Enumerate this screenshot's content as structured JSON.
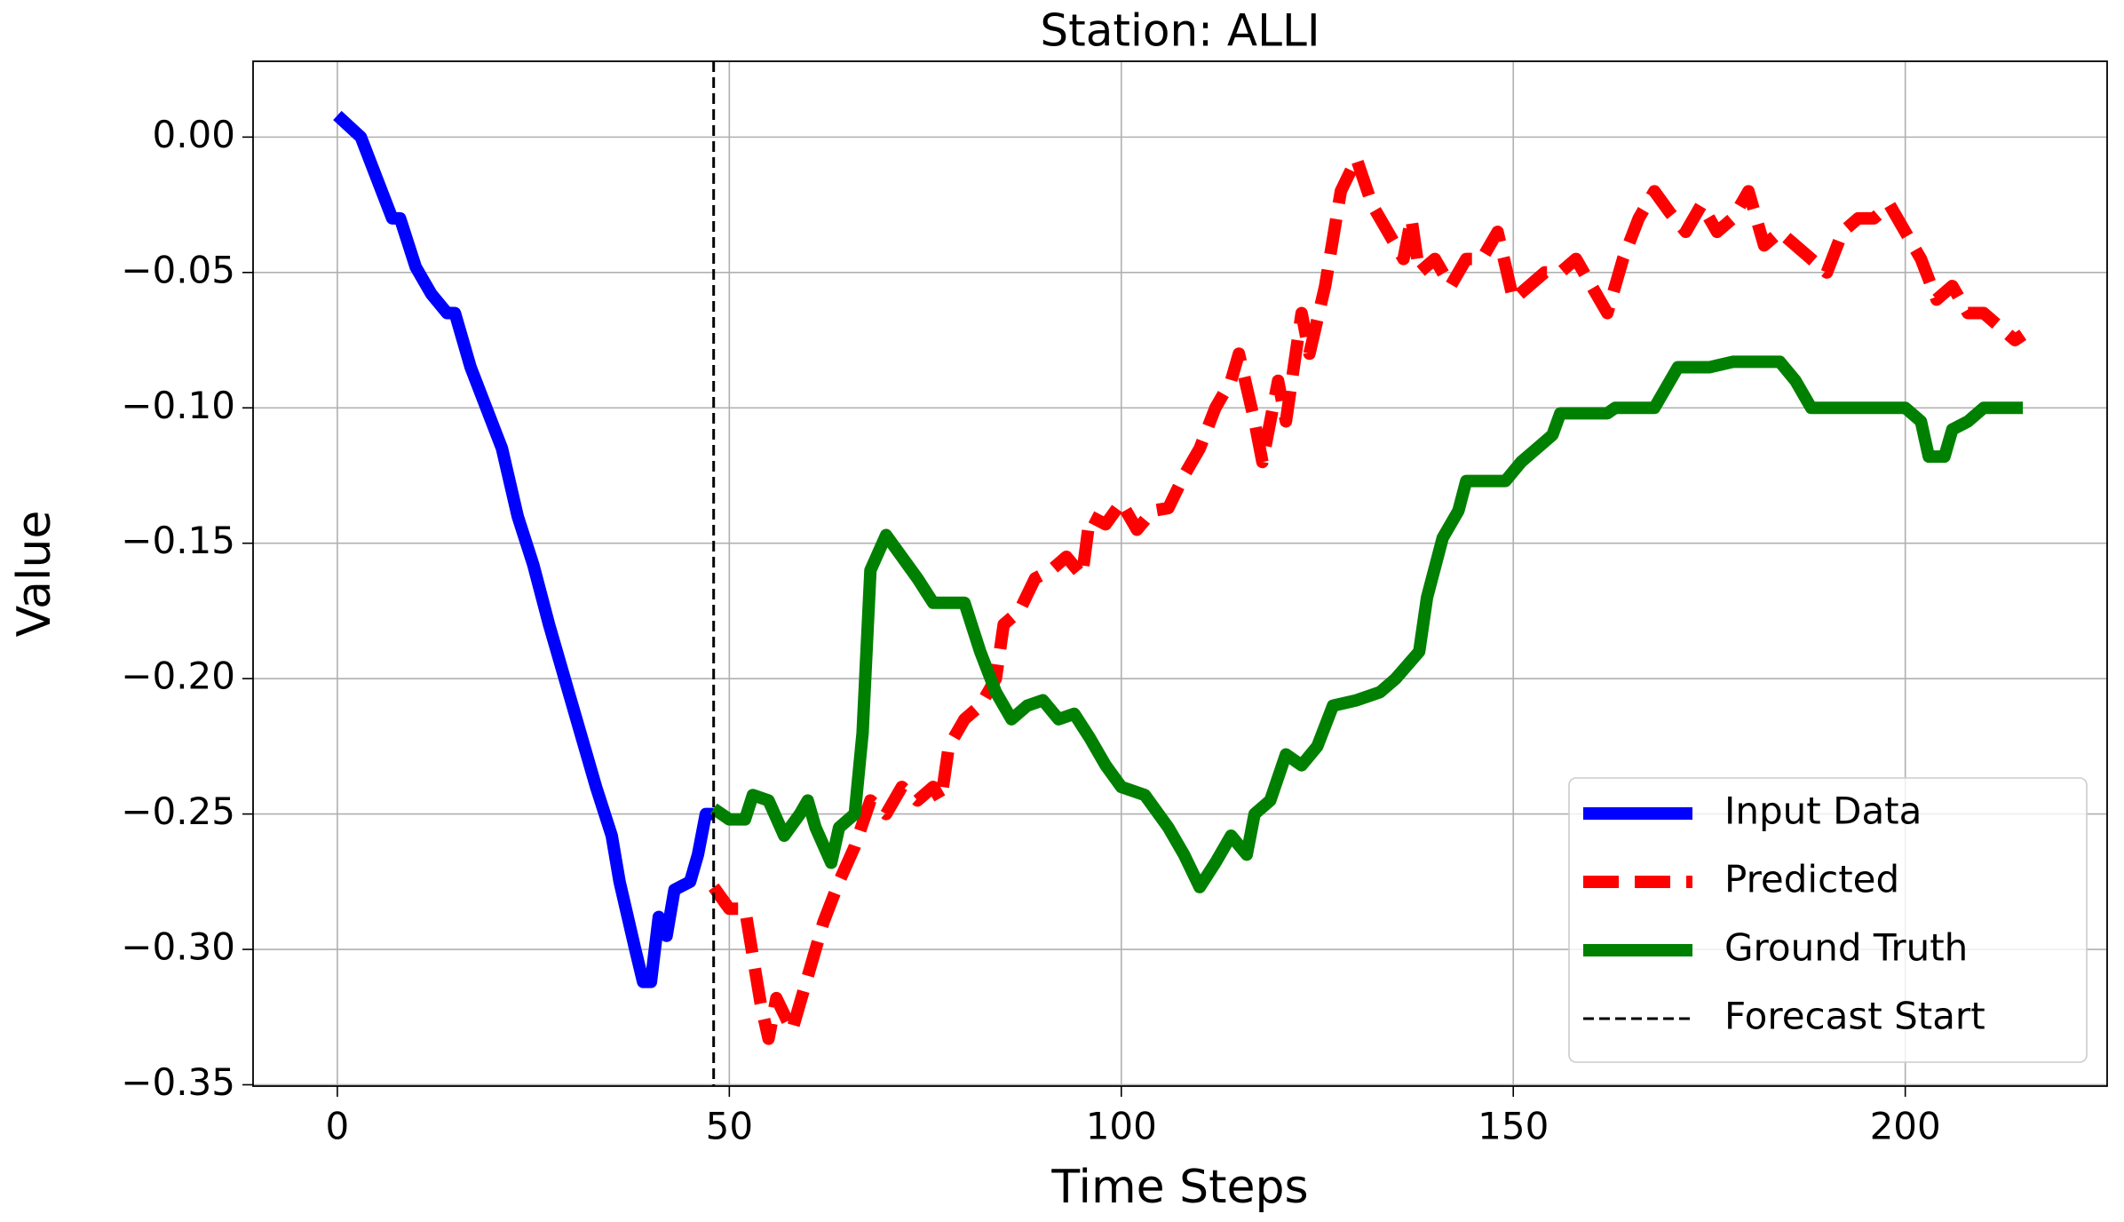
{
  "chart_data": {
    "type": "line",
    "title": "Station: ALLI",
    "x_label": "Time Steps",
    "y_label": "Value",
    "xlim": [
      -10.75,
      225.75
    ],
    "ylim": [
      -0.3505,
      0.028
    ],
    "xticks": [
      0,
      50,
      100,
      150,
      200
    ],
    "yticks": [
      {
        "value": -0.35,
        "label": "−0.35"
      },
      {
        "value": -0.3,
        "label": "−0.30"
      },
      {
        "value": -0.25,
        "label": "−0.25"
      },
      {
        "value": -0.2,
        "label": "−0.20"
      },
      {
        "value": -0.15,
        "label": "−0.15"
      },
      {
        "value": -0.1,
        "label": "−0.10"
      },
      {
        "value": -0.05,
        "label": "−0.05"
      },
      {
        "value": 0,
        "label": "0.00"
      }
    ],
    "grid": true,
    "legend": "lower right",
    "series": [
      {
        "name": "Input Data",
        "color": "#0000ff",
        "dash": "solid",
        "x": [
          0,
          3,
          5,
          7,
          8,
          10,
          12,
          14,
          15,
          17,
          19,
          21,
          23,
          25,
          27,
          29,
          31,
          33,
          35,
          36,
          38,
          39,
          40,
          41,
          42,
          43,
          45,
          46,
          47,
          48
        ],
        "values": [
          0.008,
          0.0,
          -0.015,
          -0.03,
          -0.03,
          -0.048,
          -0.058,
          -0.065,
          -0.065,
          -0.085,
          -0.1,
          -0.115,
          -0.14,
          -0.158,
          -0.18,
          -0.2,
          -0.22,
          -0.24,
          -0.258,
          -0.275,
          -0.3,
          -0.312,
          -0.312,
          -0.288,
          -0.295,
          -0.278,
          -0.275,
          -0.265,
          -0.25,
          -0.25
        ]
      },
      {
        "name": "Predicted",
        "color": "#ff0000",
        "dash": "dashed",
        "x": [
          48,
          50,
          52,
          54,
          55,
          56,
          58,
          60,
          62,
          64,
          66,
          68,
          70,
          72,
          74,
          76,
          77,
          78,
          80,
          82,
          84,
          85,
          87,
          89,
          91,
          93,
          95,
          96,
          98,
          100,
          102,
          104,
          106,
          108,
          110,
          112,
          114,
          115,
          117,
          118,
          120,
          121,
          123,
          124,
          126,
          128,
          130,
          132,
          134,
          136,
          137,
          138,
          140,
          142,
          144,
          146,
          148,
          150,
          152,
          154,
          156,
          158,
          160,
          162,
          164,
          166,
          168,
          170,
          172,
          174,
          176,
          178,
          180,
          182,
          184,
          186,
          188,
          190,
          192,
          194,
          196,
          198,
          200,
          202,
          204,
          206,
          208,
          210,
          212,
          214,
          215
        ],
        "values": [
          -0.277,
          -0.285,
          -0.285,
          -0.32,
          -0.333,
          -0.318,
          -0.33,
          -0.31,
          -0.29,
          -0.275,
          -0.262,
          -0.245,
          -0.25,
          -0.24,
          -0.245,
          -0.24,
          -0.245,
          -0.225,
          -0.215,
          -0.21,
          -0.2,
          -0.18,
          -0.175,
          -0.163,
          -0.16,
          -0.155,
          -0.162,
          -0.14,
          -0.143,
          -0.135,
          -0.145,
          -0.138,
          -0.137,
          -0.125,
          -0.115,
          -0.1,
          -0.09,
          -0.08,
          -0.105,
          -0.12,
          -0.09,
          -0.105,
          -0.065,
          -0.08,
          -0.055,
          -0.02,
          -0.008,
          -0.025,
          -0.035,
          -0.045,
          -0.03,
          -0.05,
          -0.045,
          -0.055,
          -0.045,
          -0.045,
          -0.035,
          -0.06,
          -0.055,
          -0.05,
          -0.05,
          -0.045,
          -0.055,
          -0.065,
          -0.045,
          -0.03,
          -0.02,
          -0.028,
          -0.035,
          -0.025,
          -0.035,
          -0.03,
          -0.02,
          -0.04,
          -0.035,
          -0.04,
          -0.045,
          -0.05,
          -0.035,
          -0.03,
          -0.03,
          -0.025,
          -0.035,
          -0.045,
          -0.06,
          -0.055,
          -0.065,
          -0.065,
          -0.07,
          -0.075,
          -0.073
        ]
      },
      {
        "name": "Ground Truth",
        "color": "#008000",
        "dash": "solid",
        "x": [
          48,
          50,
          52,
          53,
          55,
          57,
          59,
          60,
          61,
          63,
          64,
          66,
          67,
          68,
          70,
          72,
          74,
          76,
          78,
          80,
          82,
          84,
          86,
          88,
          90,
          92,
          94,
          96,
          98,
          100,
          103,
          106,
          108,
          110,
          112,
          114,
          116,
          117,
          119,
          121,
          123,
          125,
          127,
          130,
          133,
          135,
          138,
          139,
          141,
          143,
          144,
          149,
          151,
          153,
          155,
          156,
          162,
          163,
          168,
          170,
          171,
          175,
          178,
          184,
          186,
          188,
          200,
          202,
          203,
          205,
          206,
          208,
          210,
          215
        ],
        "values": [
          -0.248,
          -0.252,
          -0.252,
          -0.243,
          -0.245,
          -0.258,
          -0.25,
          -0.245,
          -0.255,
          -0.268,
          -0.255,
          -0.25,
          -0.22,
          -0.16,
          -0.147,
          -0.155,
          -0.163,
          -0.172,
          -0.172,
          -0.172,
          -0.19,
          -0.205,
          -0.215,
          -0.21,
          -0.208,
          -0.215,
          -0.213,
          -0.222,
          -0.232,
          -0.24,
          -0.243,
          -0.255,
          -0.265,
          -0.277,
          -0.268,
          -0.258,
          -0.265,
          -0.25,
          -0.245,
          -0.228,
          -0.232,
          -0.225,
          -0.21,
          -0.208,
          -0.205,
          -0.2,
          -0.19,
          -0.17,
          -0.148,
          -0.138,
          -0.127,
          -0.127,
          -0.12,
          -0.115,
          -0.11,
          -0.102,
          -0.102,
          -0.1,
          -0.1,
          -0.09,
          -0.085,
          -0.085,
          -0.083,
          -0.083,
          -0.09,
          -0.1,
          -0.1,
          -0.105,
          -0.118,
          -0.118,
          -0.108,
          -0.105,
          -0.1,
          -0.1
        ]
      }
    ],
    "vlines": [
      {
        "name": "Forecast Start",
        "color": "#000000",
        "dash": "dashed",
        "x": 48
      }
    ]
  }
}
